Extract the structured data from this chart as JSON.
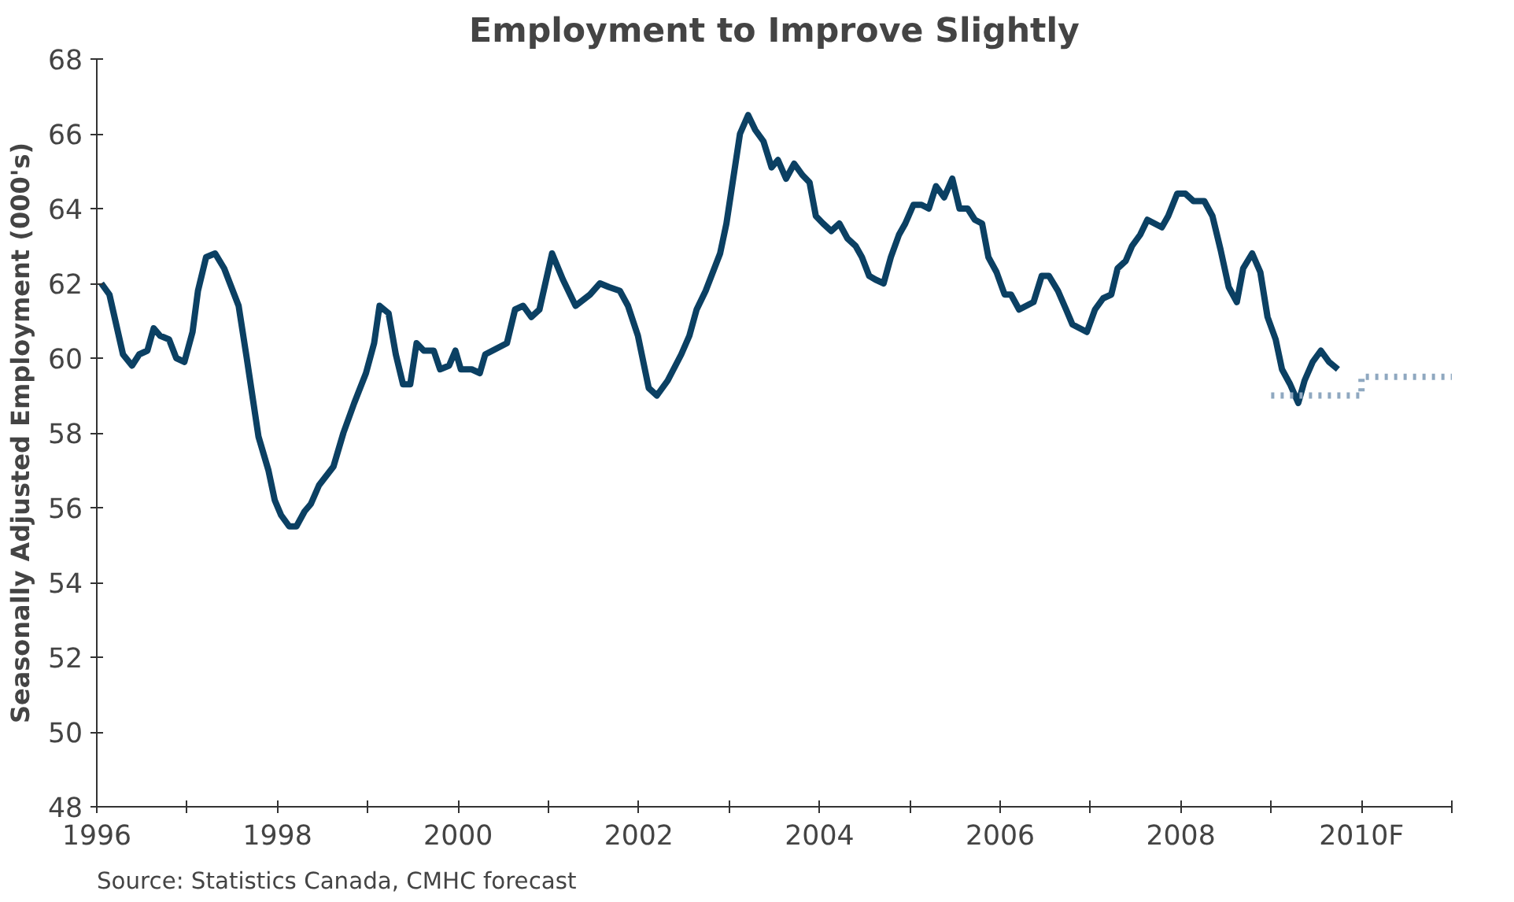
{
  "chart_data": {
    "type": "line",
    "title": "Employment to Improve Slightly",
    "ylabel": "Seasonally Adjusted Employment (000's)",
    "annotations": [
      "Source: Statistics Canada, CMHC forecast"
    ],
    "xlim": [
      1996,
      2011
    ],
    "ylim": [
      48,
      68
    ],
    "xticks": [
      1996,
      {
        "value": 1997,
        "label": null
      },
      1998,
      {
        "value": 1999,
        "label": null
      },
      2000,
      {
        "value": 2001,
        "label": null
      },
      2002,
      {
        "value": 2003,
        "label": null
      },
      2004,
      {
        "value": 2005,
        "label": null
      },
      2006,
      {
        "value": 2007,
        "label": null
      },
      2008,
      {
        "value": 2009,
        "label": null
      },
      {
        "value": 2010,
        "label": "2010F"
      },
      {
        "value": 2011,
        "label": null
      }
    ],
    "yticks": [
      48,
      50,
      52,
      54,
      56,
      58,
      60,
      62,
      64,
      66,
      68
    ],
    "grid": false,
    "line_style": "solid",
    "series": [
      {
        "color": "#0b4063",
        "x": [
          1996.05,
          1996.14,
          1996.29,
          1996.39,
          1996.47,
          1996.56,
          1996.63,
          1996.7,
          1996.8,
          1996.88,
          1996.97,
          1997.06,
          1997.12,
          1997.21,
          1997.31,
          1997.41,
          1997.57,
          1997.66,
          1997.79,
          1997.9,
          1997.97,
          1998.04,
          1998.13,
          1998.21,
          1998.3,
          1998.37,
          1998.46,
          1998.62,
          1998.73,
          1998.85,
          1998.98,
          1999.07,
          1999.13,
          1999.23,
          1999.31,
          1999.39,
          1999.47,
          1999.54,
          1999.62,
          1999.73,
          1999.8,
          1999.9,
          1999.97,
          2000.03,
          2000.15,
          2000.24,
          2000.3,
          2000.54,
          2000.63,
          2000.72,
          2000.81,
          2000.9,
          2001.04,
          2001.16,
          2001.3,
          2001.46,
          2001.57,
          2001.67,
          2001.79,
          2001.88,
          2001.99,
          2002.11,
          2002.2,
          2002.32,
          2002.47,
          2002.56,
          2002.64,
          2002.74,
          2002.9,
          2002.97,
          2003.12,
          2003.21,
          2003.29,
          2003.38,
          2003.47,
          2003.54,
          2003.63,
          2003.72,
          2003.81,
          2003.89,
          2003.96,
          2004.04,
          2004.13,
          2004.22,
          2004.31,
          2004.4,
          2004.47,
          2004.55,
          2004.62,
          2004.71,
          2004.79,
          2004.88,
          2004.95,
          2005.04,
          2005.13,
          2005.21,
          2005.29,
          2005.38,
          2005.47,
          2005.55,
          2005.64,
          2005.72,
          2005.8,
          2005.87,
          2005.96,
          2006.05,
          2006.12,
          2006.21,
          2006.37,
          2006.46,
          2006.54,
          2006.64,
          2006.73,
          2006.8,
          2006.96,
          2007.05,
          2007.14,
          2007.23,
          2007.3,
          2007.39,
          2007.46,
          2007.55,
          2007.63,
          2007.79,
          2007.86,
          2007.96,
          2008.05,
          2008.14,
          2008.26,
          2008.35,
          2008.44,
          2008.53,
          2008.62,
          2008.69,
          2008.79,
          2008.88,
          2008.96,
          2009.05,
          2009.12,
          2009.21,
          2009.3,
          2009.37,
          2009.46,
          2009.55,
          2009.64,
          2009.74
        ],
        "values": [
          62.0,
          61.7,
          60.1,
          59.8,
          60.1,
          60.2,
          60.8,
          60.6,
          60.5,
          60.0,
          59.9,
          60.7,
          61.8,
          62.7,
          62.8,
          62.4,
          61.4,
          60.0,
          57.9,
          57.0,
          56.2,
          55.8,
          55.5,
          55.5,
          55.9,
          56.1,
          56.6,
          57.1,
          58.0,
          58.8,
          59.6,
          60.4,
          61.4,
          61.2,
          60.1,
          59.3,
          59.3,
          60.4,
          60.2,
          60.2,
          59.7,
          59.8,
          60.2,
          59.7,
          59.7,
          59.6,
          60.1,
          60.4,
          61.3,
          61.4,
          61.1,
          61.3,
          62.8,
          62.1,
          61.4,
          61.7,
          62.0,
          61.9,
          61.8,
          61.4,
          60.6,
          59.2,
          59.0,
          59.4,
          60.1,
          60.6,
          61.3,
          61.8,
          62.8,
          63.6,
          66.0,
          66.5,
          66.1,
          65.8,
          65.1,
          65.3,
          64.8,
          65.2,
          64.9,
          64.7,
          63.8,
          63.6,
          63.4,
          63.6,
          63.2,
          63.0,
          62.7,
          62.2,
          62.1,
          62.0,
          62.7,
          63.3,
          63.6,
          64.1,
          64.1,
          64.0,
          64.6,
          64.3,
          64.8,
          64.0,
          64.0,
          63.7,
          63.6,
          62.7,
          62.3,
          61.7,
          61.7,
          61.3,
          61.5,
          62.2,
          62.2,
          61.8,
          61.3,
          60.9,
          60.7,
          61.3,
          61.6,
          61.7,
          62.4,
          62.6,
          63.0,
          63.3,
          63.7,
          63.5,
          63.8,
          64.4,
          64.4,
          64.2,
          64.2,
          63.8,
          62.9,
          61.9,
          61.5,
          62.4,
          62.8,
          62.3,
          61.1,
          60.5,
          59.7,
          59.3,
          58.8,
          59.4,
          59.9,
          60.2,
          59.9,
          59.7
        ]
      },
      {
        "type": "step",
        "color": "#8fa8c0",
        "line_style": "dotted",
        "x": [
          2009.0,
          2010.0,
          2011.0
        ],
        "values": [
          59.0,
          59.5,
          59.5
        ]
      }
    ]
  }
}
